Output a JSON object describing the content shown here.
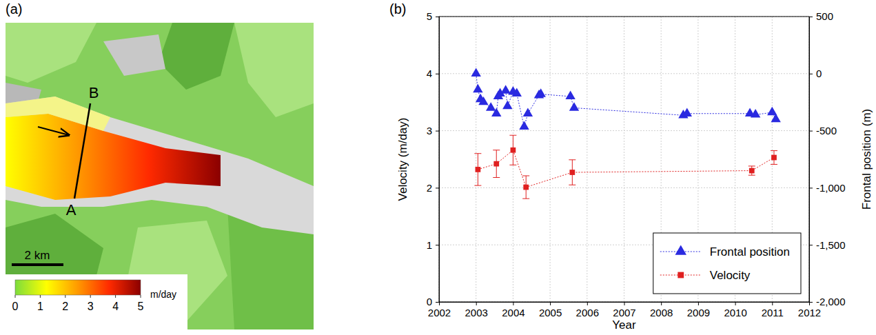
{
  "chart_data": [
    {
      "type": "map",
      "panel": "(a)",
      "points": [
        "A",
        "B"
      ],
      "scale_bar": "2 km",
      "colorbar": {
        "range": [
          0,
          5
        ],
        "ticks": [
          0,
          1,
          2,
          3,
          4,
          5
        ],
        "label": "m/day",
        "colors": [
          "#7ddc3c",
          "#ffff00",
          "#ff9900",
          "#ff2a00",
          "#8b0000"
        ]
      }
    },
    {
      "type": "line",
      "panel": "(b)",
      "x_label": "Year",
      "y_label": "Velocity (m/day)",
      "y2_label": "Frontal position (m)",
      "xlim": [
        2002,
        2012
      ],
      "xticks": [
        2002,
        2003,
        2004,
        2005,
        2006,
        2007,
        2008,
        2009,
        2010,
        2011,
        2012
      ],
      "ylim": [
        0,
        5
      ],
      "yticks": [
        0,
        1,
        2,
        3,
        4,
        5
      ],
      "y2lim": [
        -2000,
        500
      ],
      "y2ticks": [
        {
          "value": -2000,
          "label": "-2,000"
        },
        {
          "value": -1500,
          "label": "-1,500"
        },
        {
          "value": -1000,
          "label": "-1,000"
        },
        -500,
        0,
        500
      ],
      "grid": true,
      "legend": "lower right",
      "series": [
        {
          "name": "Frontal position",
          "color": "#2a2ae0",
          "marker": "triangle",
          "line_style": "dotted",
          "axis": "y2",
          "x": [
            2003.0,
            2003.05,
            2003.12,
            2003.2,
            2003.4,
            2003.55,
            2003.6,
            2003.65,
            2003.8,
            2003.85,
            2004.0,
            2004.1,
            2004.3,
            2004.4,
            2004.7,
            2004.75,
            2005.55,
            2005.65,
            2008.6,
            2008.7,
            2010.4,
            2010.55,
            2011.0,
            2011.1
          ],
          "values": [
            0,
            -140,
            -225,
            -250,
            -300,
            -350,
            -200,
            -175,
            -150,
            -285,
            -160,
            -175,
            -465,
            -350,
            -190,
            -180,
            -200,
            -300,
            -365,
            -350,
            -350,
            -360,
            -340,
            -400
          ]
        },
        {
          "name": "Velocity",
          "color": "#e02020",
          "marker": "square",
          "line_style": "dotted",
          "x": [
            2003.05,
            2003.55,
            2004.0,
            2004.35,
            2005.6,
            2010.45,
            2011.05
          ],
          "values": [
            2.32,
            2.42,
            2.66,
            2.01,
            2.27,
            2.3,
            2.53
          ],
          "errors": [
            0.28,
            0.24,
            0.26,
            0.2,
            0.22,
            0.08,
            0.12
          ]
        }
      ]
    }
  ]
}
